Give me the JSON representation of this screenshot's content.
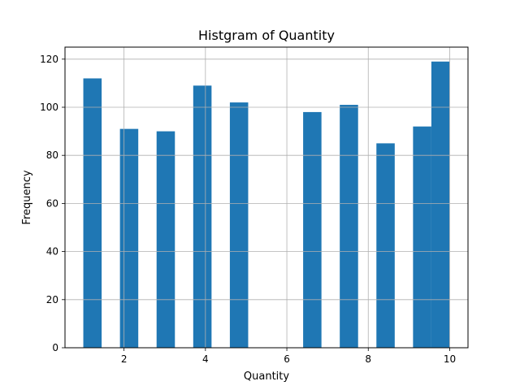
{
  "chart_data": {
    "type": "bar",
    "title": "Histgram of Quantity",
    "xlabel": "Quantity",
    "ylabel": "Frequency",
    "bins": [
      {
        "start": 1.0,
        "end": 1.45,
        "count": 112
      },
      {
        "start": 1.9,
        "end": 2.35,
        "count": 91
      },
      {
        "start": 2.8,
        "end": 3.25,
        "count": 90
      },
      {
        "start": 3.7,
        "end": 4.15,
        "count": 109
      },
      {
        "start": 4.6,
        "end": 5.05,
        "count": 102
      },
      {
        "start": 5.5,
        "end": 5.95,
        "count": 0
      },
      {
        "start": 6.4,
        "end": 6.85,
        "count": 98
      },
      {
        "start": 7.3,
        "end": 7.75,
        "count": 101
      },
      {
        "start": 8.2,
        "end": 8.65,
        "count": 85
      },
      {
        "start": 9.1,
        "end": 9.55,
        "count": 92
      },
      {
        "start": 9.55,
        "end": 10.0,
        "count": 119
      }
    ],
    "xlim": [
      0.55,
      10.45
    ],
    "ylim": [
      0,
      125
    ],
    "xticks": [
      2,
      4,
      6,
      8,
      10
    ],
    "yticks": [
      0,
      20,
      40,
      60,
      80,
      100,
      120
    ],
    "grid": true,
    "bar_color": "#1f77b4"
  }
}
